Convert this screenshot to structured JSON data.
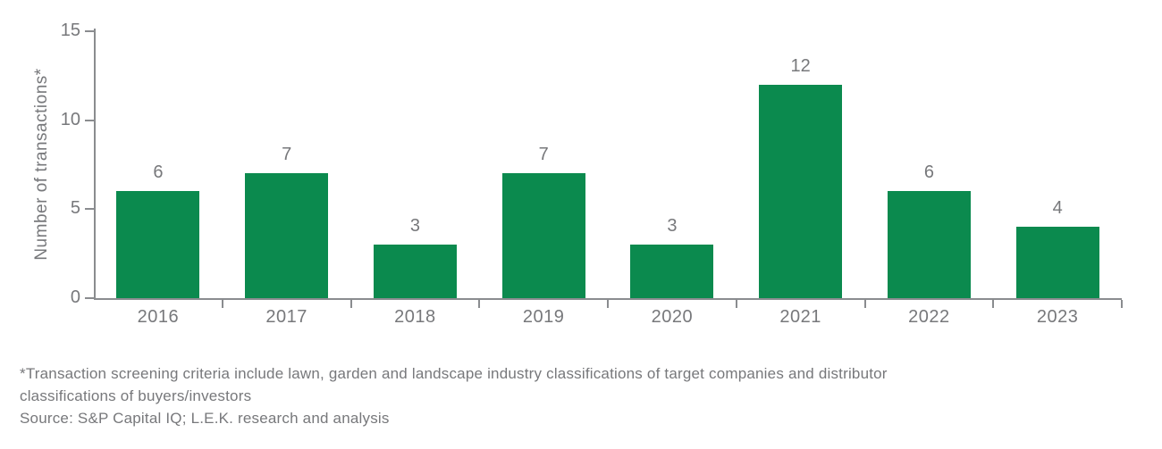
{
  "chart_data": {
    "type": "bar",
    "title": "",
    "categories": [
      "2016",
      "2017",
      "2018",
      "2019",
      "2020",
      "2021",
      "2022",
      "2023"
    ],
    "values": [
      6,
      7,
      3,
      7,
      3,
      12,
      6,
      4
    ],
    "value_labels": [
      "6",
      "7",
      "3",
      "7",
      "3",
      "12",
      "6",
      "4"
    ],
    "xlabel": "",
    "ylabel": "Number of transactions*",
    "ylim": [
      0,
      15
    ],
    "yticks": [
      0,
      5,
      10,
      15
    ],
    "grid": false,
    "legend": "none"
  },
  "colors": {
    "bar_green": "#0b8a4e",
    "axis_gray": "#8a8c8f",
    "text_gray": "#77787b",
    "background": "#ffffff"
  },
  "notes": {
    "lines": [
      "*Transaction screening criteria include lawn, garden and landscape industry classifications of target companies and distributor",
      "classifications of buyers/investors",
      "Source: S&P Capital IQ; L.E.K. research and analysis"
    ]
  }
}
